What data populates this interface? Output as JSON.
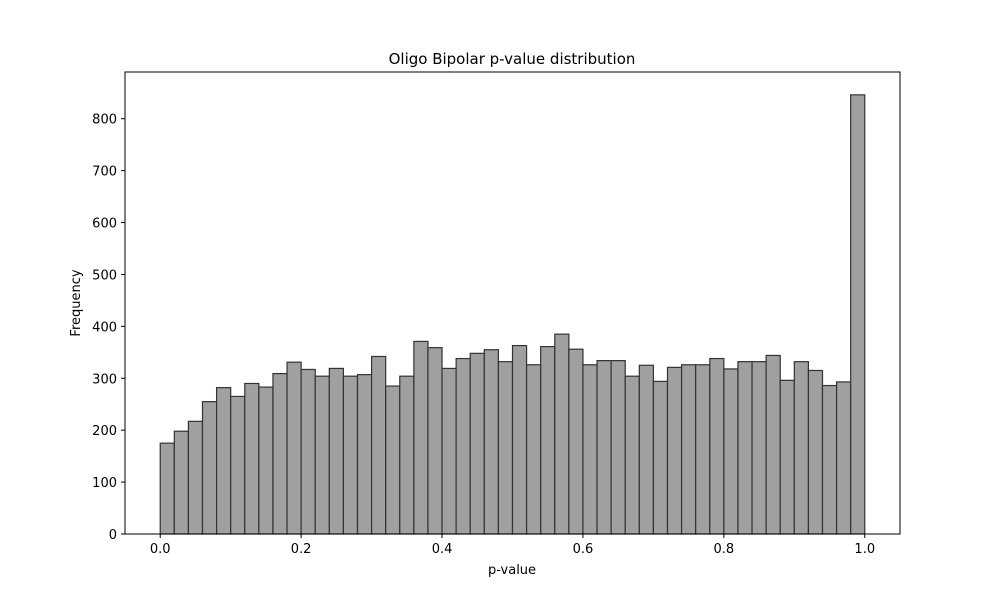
{
  "chart_data": {
    "type": "bar",
    "title": "Oligo Bipolar p-value distribution",
    "xlabel": "p-value",
    "ylabel": "Frequency",
    "xlim": [
      -0.05,
      1.05
    ],
    "ylim": [
      0,
      890
    ],
    "grid": false,
    "xticks": [
      0.0,
      0.2,
      0.4,
      0.6,
      0.8,
      1.0
    ],
    "xtick_labels": [
      "0.0",
      "0.2",
      "0.4",
      "0.6",
      "0.8",
      "1.0"
    ],
    "yticks": [
      0,
      100,
      200,
      300,
      400,
      500,
      600,
      700,
      800
    ],
    "ytick_labels": [
      "0",
      "100",
      "200",
      "300",
      "400",
      "500",
      "600",
      "700",
      "800"
    ],
    "bin_start": 0.0,
    "bin_width": 0.02,
    "values": [
      175,
      198,
      217,
      255,
      282,
      265,
      290,
      283,
      309,
      331,
      317,
      304,
      319,
      304,
      307,
      342,
      285,
      304,
      371,
      359,
      319,
      338,
      348,
      355,
      332,
      363,
      326,
      361,
      385,
      356,
      326,
      334,
      334,
      304,
      325,
      294,
      321,
      326,
      326,
      338,
      318,
      332,
      332,
      344,
      296,
      332,
      315,
      286,
      293,
      846
    ],
    "bar_color": "#a0a0a0",
    "edge_color": "#333333"
  }
}
